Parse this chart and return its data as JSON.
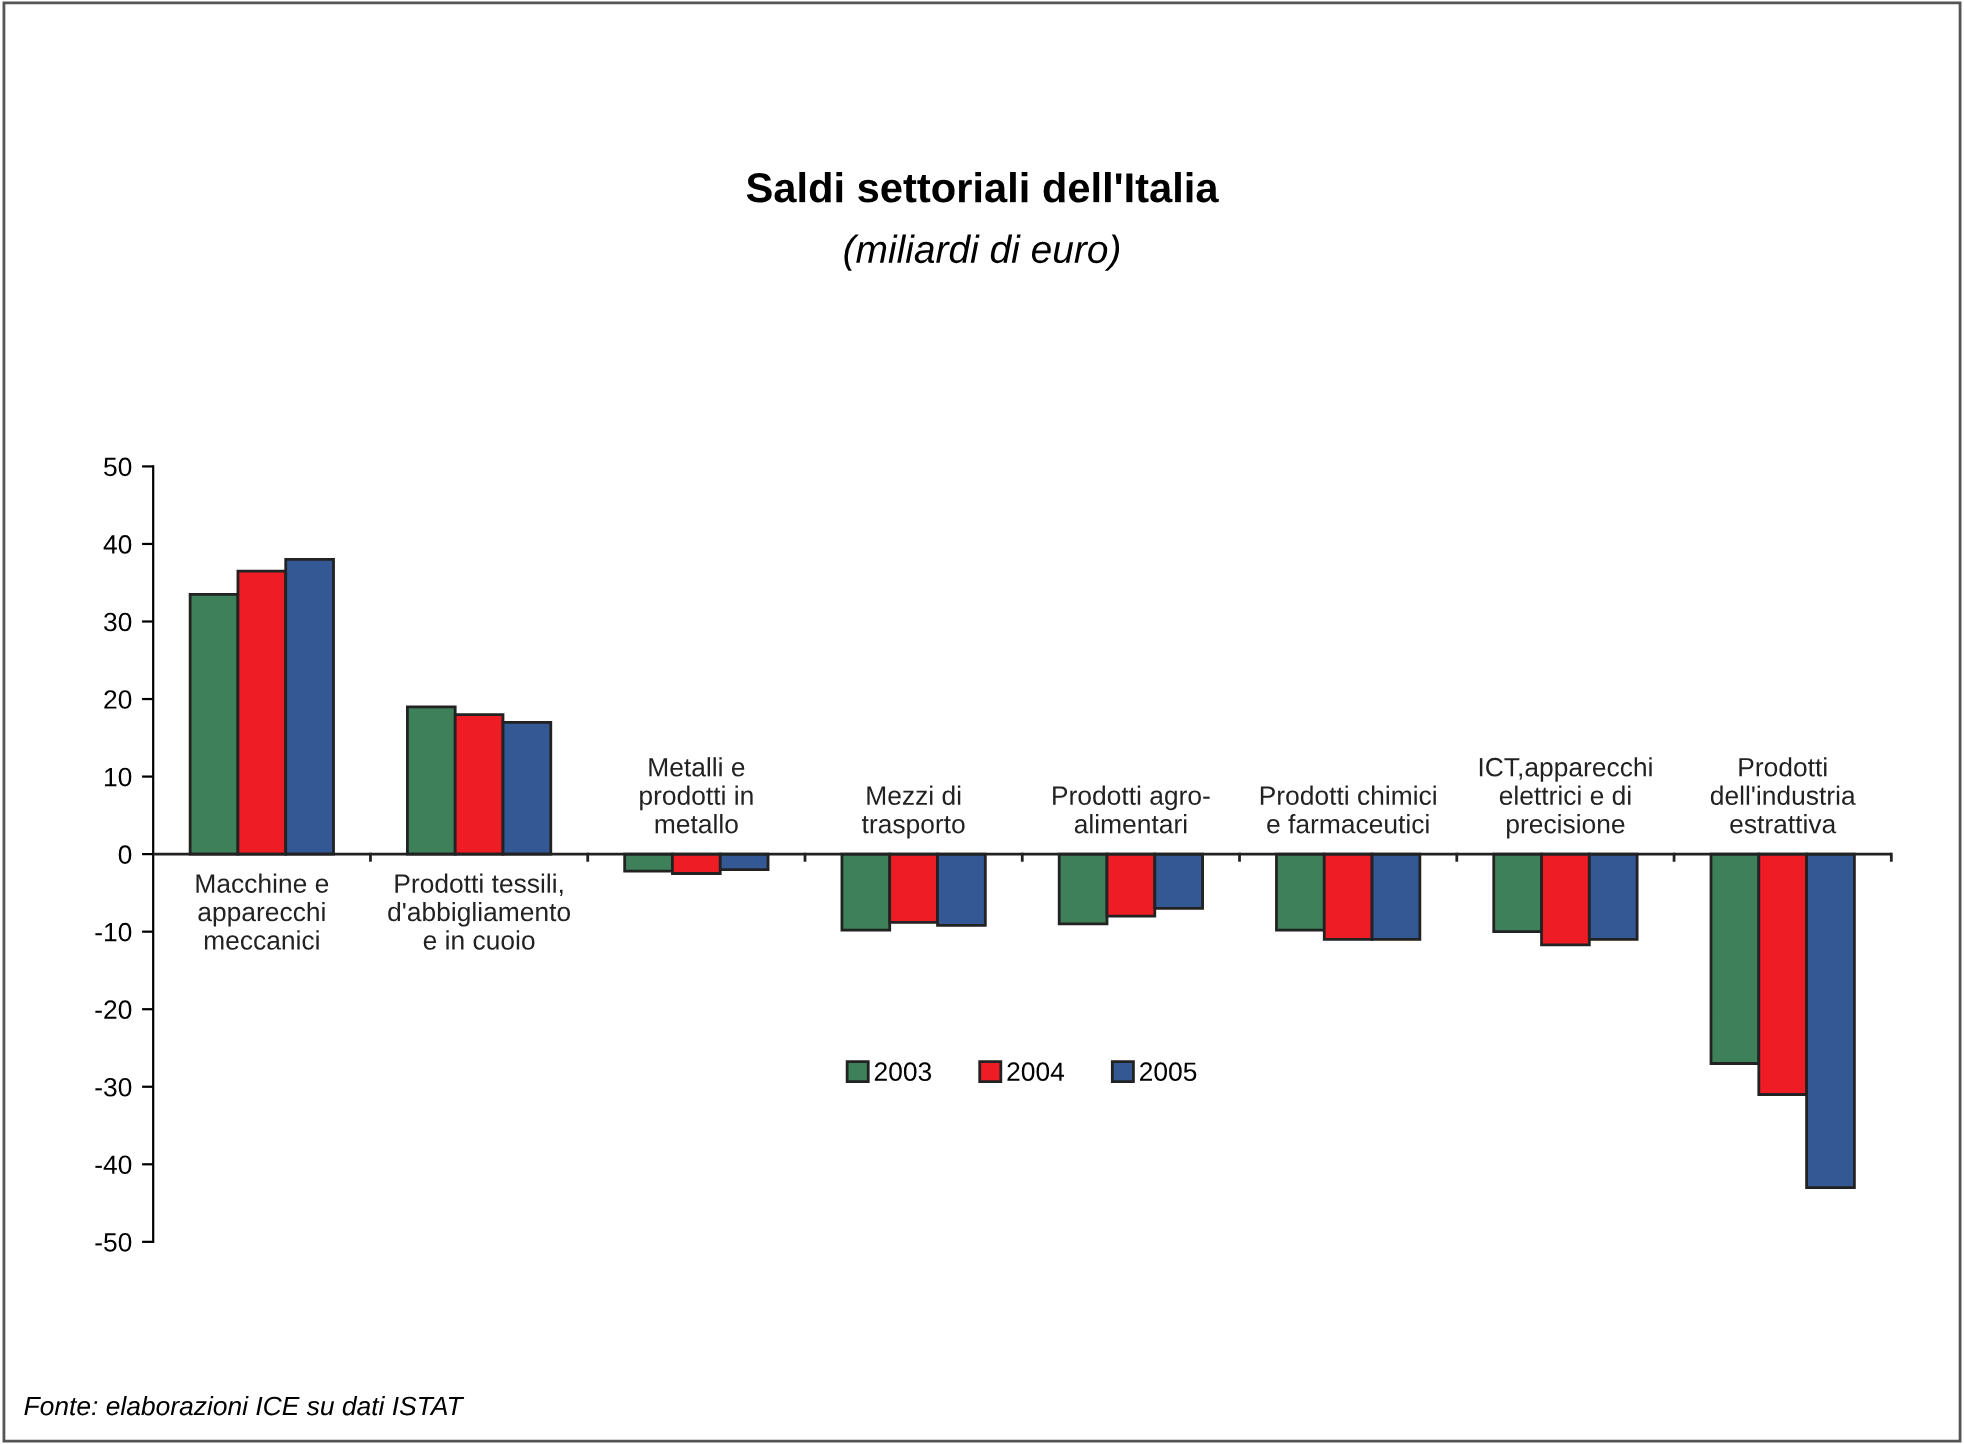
{
  "chart_data": {
    "type": "bar",
    "title": "Saldi settoriali dell'Italia",
    "subtitle": "(miliardi di euro)",
    "categories": [
      "Macchine e\napparecchi\nmeccanici",
      "Prodotti tessili,\nd'abbigliamento\ne in cuoio",
      "Metalli e\nprodotti in\nmetallo",
      "Mezzi di\ntrasporto",
      "Prodotti agro-\nalimentari",
      "Prodotti chimici\ne farmaceutici",
      "ICT,apparecchi\nelettrici e di\nprecisione",
      "Prodotti\ndell'industria\nestrattiva"
    ],
    "series": [
      {
        "name": "2003",
        "color": "#3d805a",
        "values": [
          33.5,
          19,
          -2.2,
          -9.8,
          -9,
          -9.8,
          -10,
          -27
        ]
      },
      {
        "name": "2004",
        "color": "#ee1c25",
        "values": [
          36.5,
          18,
          -2.5,
          -8.8,
          -8,
          -11,
          -11.7,
          -31
        ]
      },
      {
        "name": "2005",
        "color": "#335894",
        "values": [
          38,
          17,
          -2,
          -9.2,
          -7,
          -11,
          -11,
          -43
        ]
      }
    ],
    "ylim": [
      -50,
      50
    ],
    "yticks": [
      -50,
      -40,
      -30,
      -20,
      -10,
      0,
      10,
      20,
      30,
      40,
      50
    ],
    "grid": false,
    "legend": "bottom",
    "annotations": [
      "Fonte: elaborazioni ICE su dati ISTAT"
    ]
  }
}
